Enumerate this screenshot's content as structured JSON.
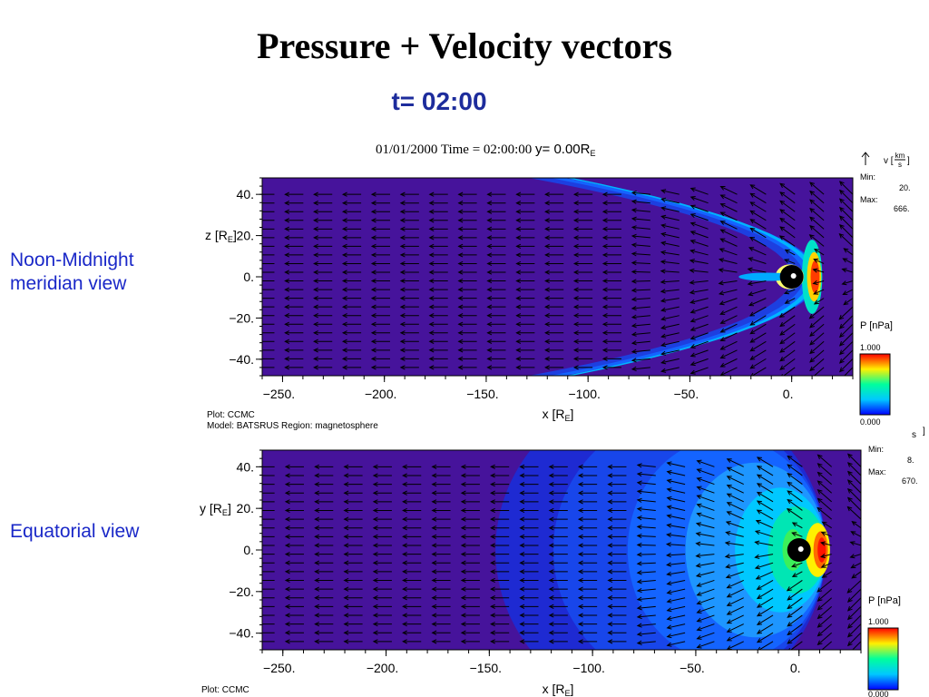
{
  "title": "Pressure + Velocity vectors",
  "time_label": "t= 02:00",
  "side_labels": {
    "top": [
      "Noon-Midnight",
      "meridian view"
    ],
    "bottom": "Equatorial view"
  },
  "plot_header": {
    "date": "01/01/2000",
    "time_text": "Time = 02:00:00",
    "y_text": "y= 0.00R",
    "y_sub": "E"
  },
  "credits": {
    "plot": "Plot: CCMC",
    "model": "Model: BATSRUS   Region: magnetosphere"
  },
  "colors": {
    "background": "#46139b",
    "arrow": "#000000",
    "colorbar": [
      "#0000ff",
      "#00c8ff",
      "#00ff9c",
      "#fff000",
      "#ff0000"
    ]
  },
  "chart_data": [
    {
      "type": "heatmap",
      "name": "Noon-Midnight meridian view",
      "xlabel": "x [R",
      "xlabel_sub": "E",
      "xlabel_end": "]",
      "ylabel": "z [R",
      "ylabel_sub": "E",
      "ylabel_end": "]",
      "x_ticks": [
        "−250.",
        "−200.",
        "−150.",
        "−100.",
        "−50.",
        "0."
      ],
      "y_ticks": [
        "40.",
        "20.",
        "0.",
        "−20.",
        "−40."
      ],
      "xlim": [
        -260,
        30
      ],
      "ylim": [
        -48,
        48
      ],
      "field": "P [nPa]",
      "colorbar_title": "P [nPa]",
      "colorbar_max": "1.000",
      "colorbar_min": "0.000",
      "vector_legend": {
        "title": "v [",
        "fraction_top": "km",
        "fraction_bottom": "s",
        "close": "]",
        "min_label": "Min:",
        "min_value": "20.",
        "max_label": "Max:",
        "max_value": "666."
      }
    },
    {
      "type": "heatmap",
      "name": "Equatorial view",
      "xlabel": "x [R",
      "xlabel_sub": "E",
      "xlabel_end": "]",
      "ylabel": "y [R",
      "ylabel_sub": "E",
      "ylabel_end": "]",
      "x_ticks": [
        "−250.",
        "−200.",
        "−150.",
        "−100.",
        "−50.",
        "0."
      ],
      "y_ticks": [
        "40.",
        "20.",
        "0.",
        "−20.",
        "−40."
      ],
      "xlim": [
        -260,
        30
      ],
      "ylim": [
        -48,
        48
      ],
      "field": "P [nPa]",
      "colorbar_title": "P [nPa]",
      "colorbar_max": "1.000",
      "colorbar_min": "0.000",
      "vector_legend": {
        "partial_text": "s",
        "close": "]",
        "min_label": "Min:",
        "min_value": "8.",
        "max_label": "Max:",
        "max_value": "670."
      }
    }
  ]
}
